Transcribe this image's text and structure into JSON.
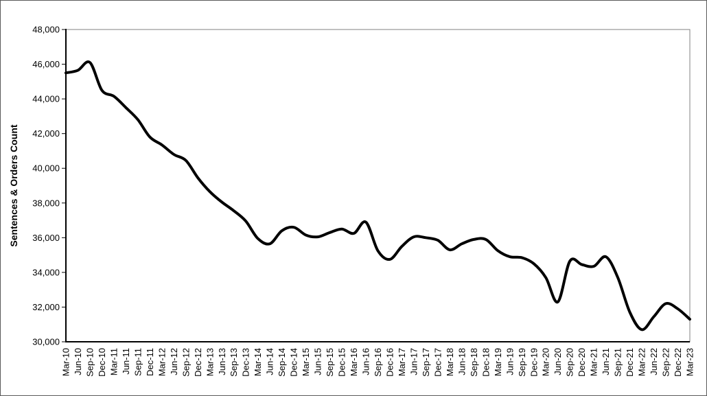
{
  "chart_data": {
    "type": "line",
    "title": "",
    "xlabel": "",
    "ylabel": "Sentences & Orders Count",
    "ylim": [
      30000,
      48000
    ],
    "grid": false,
    "legend_position": "none",
    "y_ticks": [
      {
        "label": "48,000",
        "value": 48000
      },
      {
        "label": "46,000",
        "value": 46000
      },
      {
        "label": "44,000",
        "value": 44000
      },
      {
        "label": "42,000",
        "value": 42000
      },
      {
        "label": "40,000",
        "value": 40000
      },
      {
        "label": "38,000",
        "value": 38000
      },
      {
        "label": "36,000",
        "value": 36000
      },
      {
        "label": "34,000",
        "value": 34000
      },
      {
        "label": "32,000",
        "value": 32000
      },
      {
        "label": "30,000",
        "value": 30000
      }
    ],
    "categories": [
      "Mar-10",
      "Jun-10",
      "Sep-10",
      "Dec-10",
      "Mar-11",
      "Jun-11",
      "Sep-11",
      "Dec-11",
      "Mar-12",
      "Jun-12",
      "Sep-12",
      "Dec-12",
      "Mar-13",
      "Jun-13",
      "Sep-13",
      "Dec-13",
      "Mar-14",
      "Jun-14",
      "Sep-14",
      "Dec-14",
      "Mar-15",
      "Jun-15",
      "Sep-15",
      "Dec-15",
      "Mar-16",
      "Jun-16",
      "Sep-16",
      "Dec-16",
      "Mar-17",
      "Jun-17",
      "Sep-17",
      "Dec-17",
      "Mar-18",
      "Jun-18",
      "Sep-18",
      "Dec-18",
      "Mar-19",
      "Jun-19",
      "Sep-19",
      "Dec-19",
      "Mar-20",
      "Jun-20",
      "Sep-20",
      "Dec-20",
      "Mar-21",
      "Jun-21",
      "Sep-21",
      "Dec-21",
      "Mar-22",
      "Jun-22",
      "Sep-22",
      "Dec-22",
      "Mar-23"
    ],
    "series": [
      {
        "name": "Sentences & Orders Count",
        "smooth": true,
        "values": [
          45500,
          45650,
          46100,
          44500,
          44150,
          43500,
          42800,
          41800,
          41350,
          40800,
          40450,
          39450,
          38650,
          38050,
          37550,
          36950,
          35950,
          35650,
          36400,
          36600,
          36150,
          36050,
          36300,
          36500,
          36250,
          36900,
          35250,
          34750,
          35500,
          36050,
          36000,
          35850,
          35300,
          35650,
          35900,
          35900,
          35250,
          34900,
          34850,
          34500,
          33700,
          32300,
          34650,
          34450,
          34350,
          34900,
          33700,
          31700,
          30700,
          31450,
          32200,
          31900,
          31300
        ]
      }
    ],
    "colors": {
      "line": "#000000",
      "axis": "#000000",
      "plot_border": "#808080",
      "text": "#000000",
      "background": "#ffffff"
    }
  }
}
